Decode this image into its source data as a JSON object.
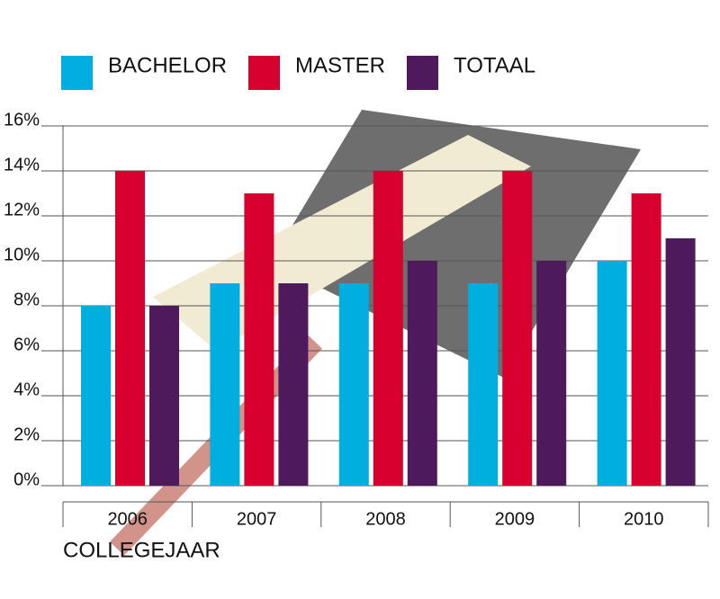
{
  "chart_data": {
    "type": "bar",
    "categories": [
      "2006",
      "2007",
      "2008",
      "2009",
      "2010"
    ],
    "series": [
      {
        "name": "BACHELOR",
        "color": "#00aee0",
        "values": [
          8,
          9,
          9,
          9,
          10
        ]
      },
      {
        "name": "MASTER",
        "color": "#d7002e",
        "values": [
          14,
          13,
          14,
          14,
          13
        ]
      },
      {
        "name": "TOTAAL",
        "color": "#4f1a5b",
        "values": [
          8,
          9,
          10,
          10,
          11
        ]
      }
    ],
    "x_label": "COLLEGEJAAR",
    "ylim": [
      0,
      16
    ],
    "yticks": [
      {
        "value": 0,
        "label": "0%"
      },
      {
        "value": 2,
        "label": "2%"
      },
      {
        "value": 4,
        "label": "4%"
      },
      {
        "value": 6,
        "label": "6%"
      },
      {
        "value": 8,
        "label": "8%"
      },
      {
        "value": 10,
        "label": "10%"
      },
      {
        "value": 12,
        "label": "12%"
      },
      {
        "value": 14,
        "label": "14%"
      },
      {
        "value": 16,
        "label": "16%"
      }
    ],
    "grid": true
  }
}
